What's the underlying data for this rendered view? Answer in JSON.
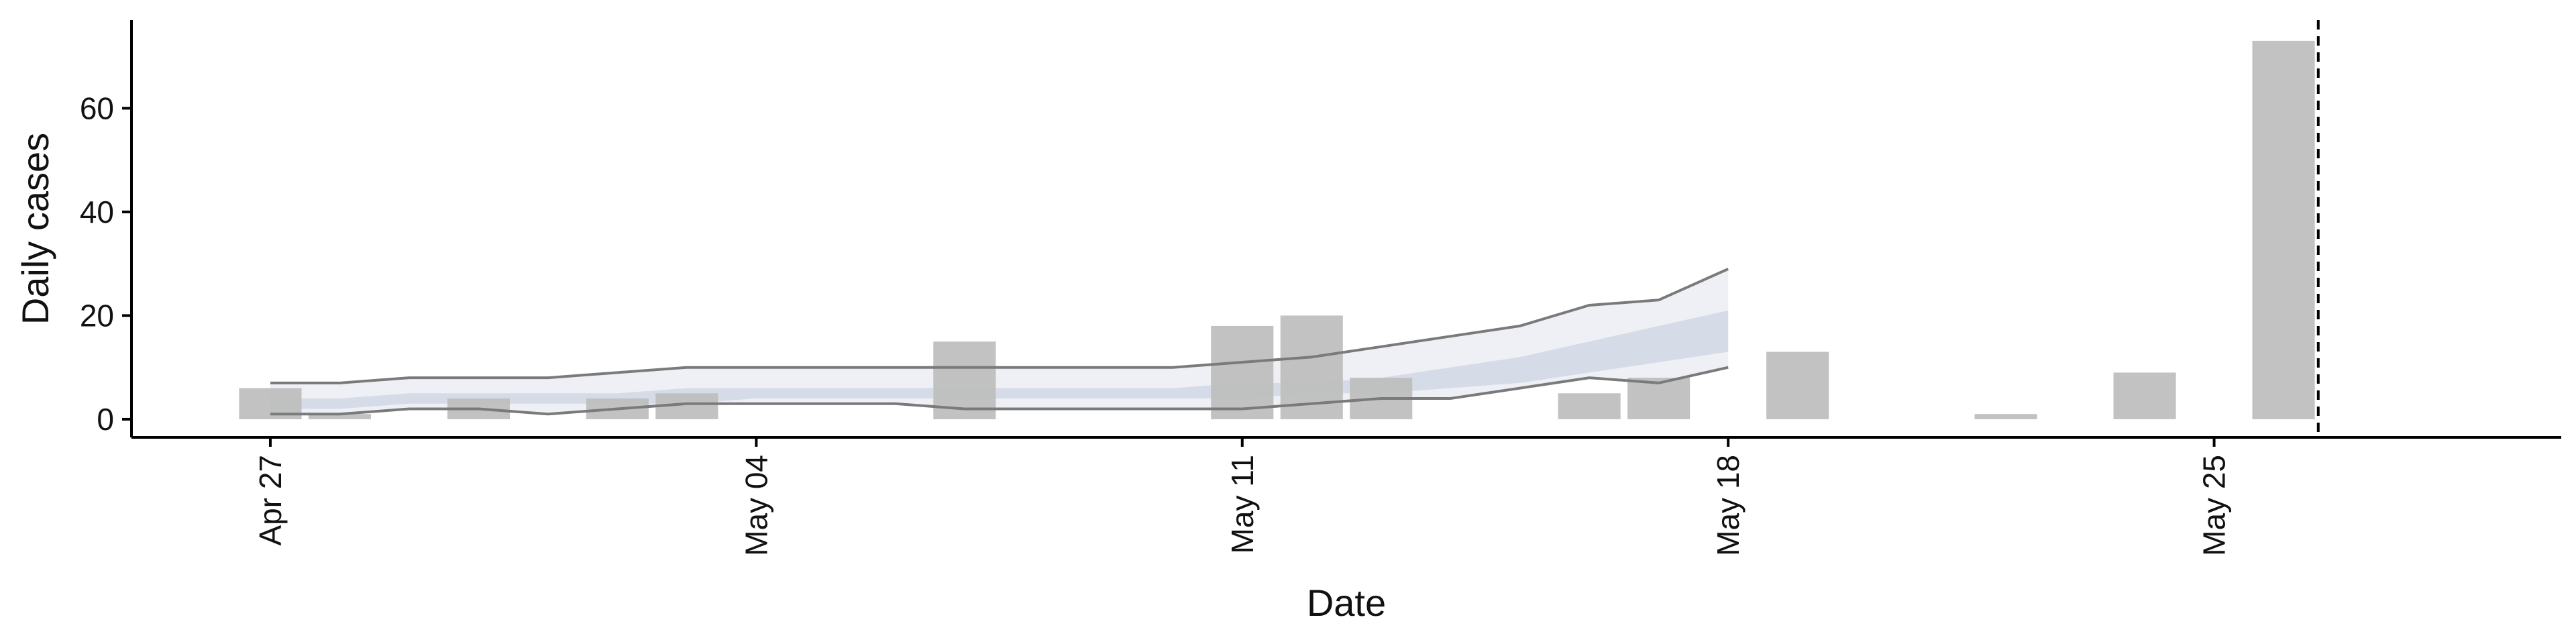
{
  "chart_data": {
    "type": "bar",
    "xlabel": "Date",
    "ylabel": "Daily cases",
    "ylim": [
      -3.5,
      77
    ],
    "xlim": [
      "2020-04-25",
      "2020-05-30"
    ],
    "y_ticks": [
      0,
      20,
      40,
      60
    ],
    "x_ticks": [
      {
        "date": "2020-04-27",
        "label": "Apr 27"
      },
      {
        "date": "2020-05-04",
        "label": "May 04"
      },
      {
        "date": "2020-05-11",
        "label": "May 11"
      },
      {
        "date": "2020-05-18",
        "label": "May 18"
      },
      {
        "date": "2020-05-25",
        "label": "May 25"
      }
    ],
    "bars": [
      {
        "date": "2020-04-27",
        "value": 6
      },
      {
        "date": "2020-04-28",
        "value": 1
      },
      {
        "date": "2020-04-30",
        "value": 4
      },
      {
        "date": "2020-05-02",
        "value": 4
      },
      {
        "date": "2020-05-03",
        "value": 5
      },
      {
        "date": "2020-05-07",
        "value": 15
      },
      {
        "date": "2020-05-11",
        "value": 18
      },
      {
        "date": "2020-05-12",
        "value": 20
      },
      {
        "date": "2020-05-13",
        "value": 8
      },
      {
        "date": "2020-05-16",
        "value": 5
      },
      {
        "date": "2020-05-17",
        "value": 8
      },
      {
        "date": "2020-05-19",
        "value": 13
      },
      {
        "date": "2020-05-22",
        "value": 1
      },
      {
        "date": "2020-05-24",
        "value": 9
      },
      {
        "date": "2020-05-26",
        "value": 73
      }
    ],
    "band_dates": [
      "2020-04-27",
      "2020-04-28",
      "2020-04-29",
      "2020-04-30",
      "2020-05-01",
      "2020-05-02",
      "2020-05-03",
      "2020-05-04",
      "2020-05-05",
      "2020-05-06",
      "2020-05-07",
      "2020-05-08",
      "2020-05-09",
      "2020-05-10",
      "2020-05-11",
      "2020-05-12",
      "2020-05-13",
      "2020-05-14",
      "2020-05-15",
      "2020-05-16",
      "2020-05-17",
      "2020-05-18"
    ],
    "outer_upper": [
      7,
      7,
      8,
      8,
      8,
      9,
      10,
      10,
      10,
      10,
      10,
      10,
      10,
      10,
      11,
      12,
      14,
      16,
      18,
      22,
      23,
      29
    ],
    "outer_lower": [
      1,
      1,
      2,
      2,
      1,
      2,
      3,
      3,
      3,
      3,
      2,
      2,
      2,
      2,
      2,
      3,
      4,
      4,
      6,
      8,
      7,
      10
    ],
    "inner_upper": [
      4,
      4,
      5,
      5,
      5,
      5,
      6,
      6,
      6,
      6,
      6,
      6,
      6,
      6,
      7,
      7,
      8,
      10,
      12,
      15,
      18,
      21
    ],
    "inner_lower": [
      2,
      2,
      3,
      3,
      3,
      3,
      3,
      4,
      4,
      4,
      4,
      4,
      4,
      4,
      4,
      5,
      5,
      6,
      7,
      9,
      11,
      13
    ],
    "vline_date": "2020-05-26T12:00",
    "colors": {
      "bar": "#bdbdbd",
      "outer_band": "#eef0f5",
      "inner_band": "#d3d9e6",
      "band_edge": "#7a7a7a",
      "vline": "#000000",
      "axis": "#000000"
    }
  }
}
